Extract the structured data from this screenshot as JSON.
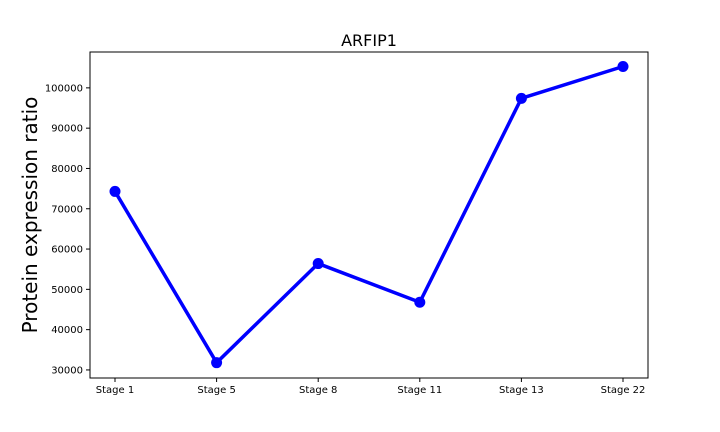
{
  "chart_data": {
    "type": "line",
    "title": "ARFIP1",
    "xlabel": "",
    "ylabel": "Protein expression ratio",
    "categories": [
      "Stage 1",
      "Stage 5",
      "Stage 8",
      "Stage 11",
      "Stage 13",
      "Stage 22"
    ],
    "series": [
      {
        "values": [
          74300,
          31800,
          56400,
          46800,
          97400,
          105300
        ],
        "color": "#0000ff",
        "marker": "circle"
      }
    ],
    "yticks": [
      30000,
      40000,
      50000,
      60000,
      70000,
      80000,
      90000,
      100000
    ],
    "ylim": [
      28000,
      108900
    ],
    "grid": false,
    "legend": "none"
  }
}
